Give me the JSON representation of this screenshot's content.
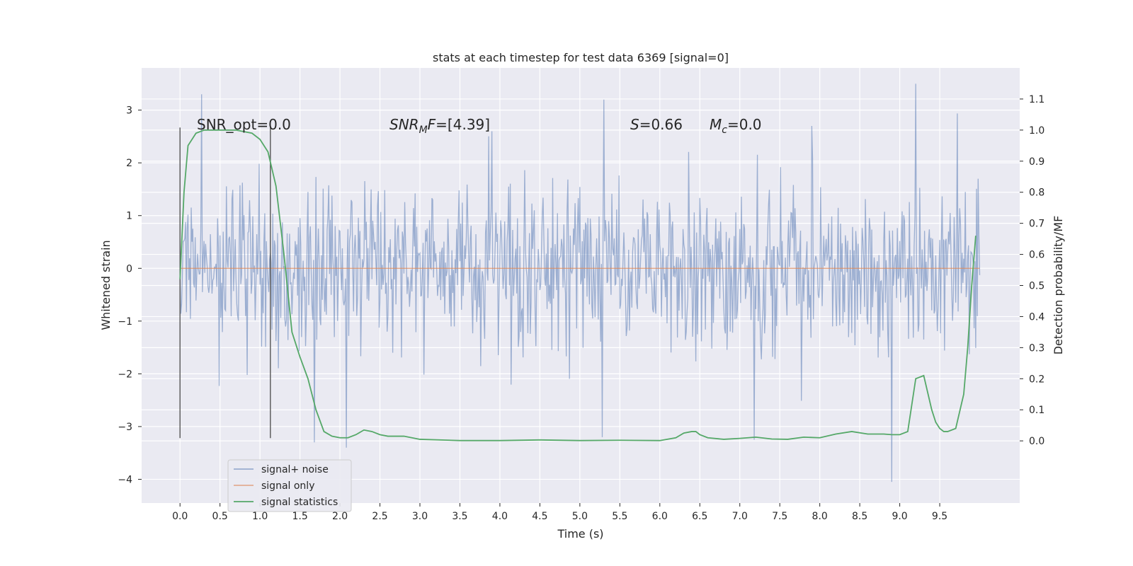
{
  "chart_data": {
    "type": "line",
    "title": "stats at each timestep for test data 6369 [signal=0]",
    "xlabel": "Time (s)",
    "ylabel": "Whitened strain",
    "ylabel_right": "Detection probability/MF",
    "xlim": [
      -0.48,
      10.5
    ],
    "ylim": [
      -4.45,
      3.8
    ],
    "ylim_right": [
      -0.2,
      1.2
    ],
    "x_ticks": [
      "0.0",
      "0.5",
      "1.0",
      "1.5",
      "2.0",
      "2.5",
      "3.0",
      "3.5",
      "4.0",
      "4.5",
      "5.0",
      "5.5",
      "6.0",
      "6.5",
      "7.0",
      "7.5",
      "8.0",
      "8.5",
      "9.0",
      "9.5"
    ],
    "y_ticks": [
      "3",
      "2",
      "1",
      "0",
      "−1",
      "−2",
      "−3",
      "−4"
    ],
    "y_right_ticks": [
      "1.1",
      "1.0",
      "0.9",
      "0.8",
      "0.7",
      "0.6",
      "0.5",
      "0.4",
      "0.3",
      "0.2",
      "0.1",
      "0.0"
    ],
    "grid": true,
    "legend_position": "lower-left",
    "legend": [
      "signal+ noise",
      "signal only",
      "signal statistics"
    ],
    "annotations": {
      "snr_opt_prefix": "SNR_opt=",
      "snr_opt_value": "0.0",
      "snr_mf_sym": "SNR",
      "snr_mf_sub": "M",
      "snr_mf_sym2": "F",
      "snr_mf_value": "=[4.39]",
      "s_sym": "S",
      "s_value": "=0.66",
      "mc_sym": "M",
      "mc_sub": "c",
      "mc_value": "=0.0"
    },
    "markers": [
      0.0,
      1.13
    ],
    "marker_range": [
      -3.22,
      2.67
    ],
    "series": [
      {
        "name": "signal+ noise",
        "color": "#4c72b0",
        "duration": 10.0,
        "sample_spacing": 0.01,
        "envelope_upper_typical": 1.5,
        "envelope_lower_typical": -1.5,
        "peaks_high": [
          [
            0.27,
            3.3
          ],
          [
            9.2,
            3.5
          ],
          [
            5.3,
            3.2
          ],
          [
            7.9,
            2.7
          ],
          [
            3.9,
            2.6
          ]
        ],
        "peaks_low": [
          [
            8.9,
            -4.05
          ],
          [
            2.08,
            -3.4
          ],
          [
            1.68,
            -3.3
          ],
          [
            7.18,
            -3.25
          ],
          [
            5.28,
            -3.2
          ]
        ]
      },
      {
        "name": "signal only",
        "color": "#dd8452",
        "x": [
          0.0,
          10.0
        ],
        "y": [
          0.0,
          0.0
        ]
      },
      {
        "name": "signal statistics",
        "color": "#55a868",
        "axis": "right",
        "x": [
          0.0,
          0.05,
          0.1,
          0.2,
          0.3,
          0.5,
          0.7,
          0.9,
          1.0,
          1.1,
          1.2,
          1.3,
          1.4,
          1.5,
          1.6,
          1.7,
          1.8,
          1.9,
          2.0,
          2.1,
          2.2,
          2.3,
          2.4,
          2.5,
          2.6,
          2.8,
          3.0,
          3.5,
          4.0,
          4.5,
          5.0,
          5.5,
          6.0,
          6.2,
          6.3,
          6.4,
          6.45,
          6.5,
          6.6,
          6.8,
          7.0,
          7.2,
          7.4,
          7.6,
          7.8,
          8.0,
          8.2,
          8.4,
          8.6,
          8.8,
          8.9,
          9.0,
          9.1,
          9.2,
          9.3,
          9.4,
          9.45,
          9.5,
          9.55,
          9.6,
          9.7,
          9.8,
          9.85,
          9.9,
          9.95
        ],
        "y": [
          0.52,
          0.8,
          0.95,
          0.99,
          1.0,
          1.0,
          1.0,
          0.99,
          0.97,
          0.93,
          0.82,
          0.6,
          0.35,
          0.27,
          0.2,
          0.1,
          0.03,
          0.015,
          0.01,
          0.01,
          0.02,
          0.035,
          0.03,
          0.02,
          0.015,
          0.015,
          0.005,
          0.001,
          0.001,
          0.003,
          0.001,
          0.002,
          0.001,
          0.01,
          0.025,
          0.03,
          0.03,
          0.02,
          0.01,
          0.005,
          0.008,
          0.012,
          0.006,
          0.005,
          0.012,
          0.01,
          0.022,
          0.03,
          0.022,
          0.022,
          0.02,
          0.02,
          0.03,
          0.2,
          0.21,
          0.1,
          0.06,
          0.04,
          0.03,
          0.03,
          0.04,
          0.15,
          0.3,
          0.5,
          0.66
        ]
      }
    ]
  }
}
